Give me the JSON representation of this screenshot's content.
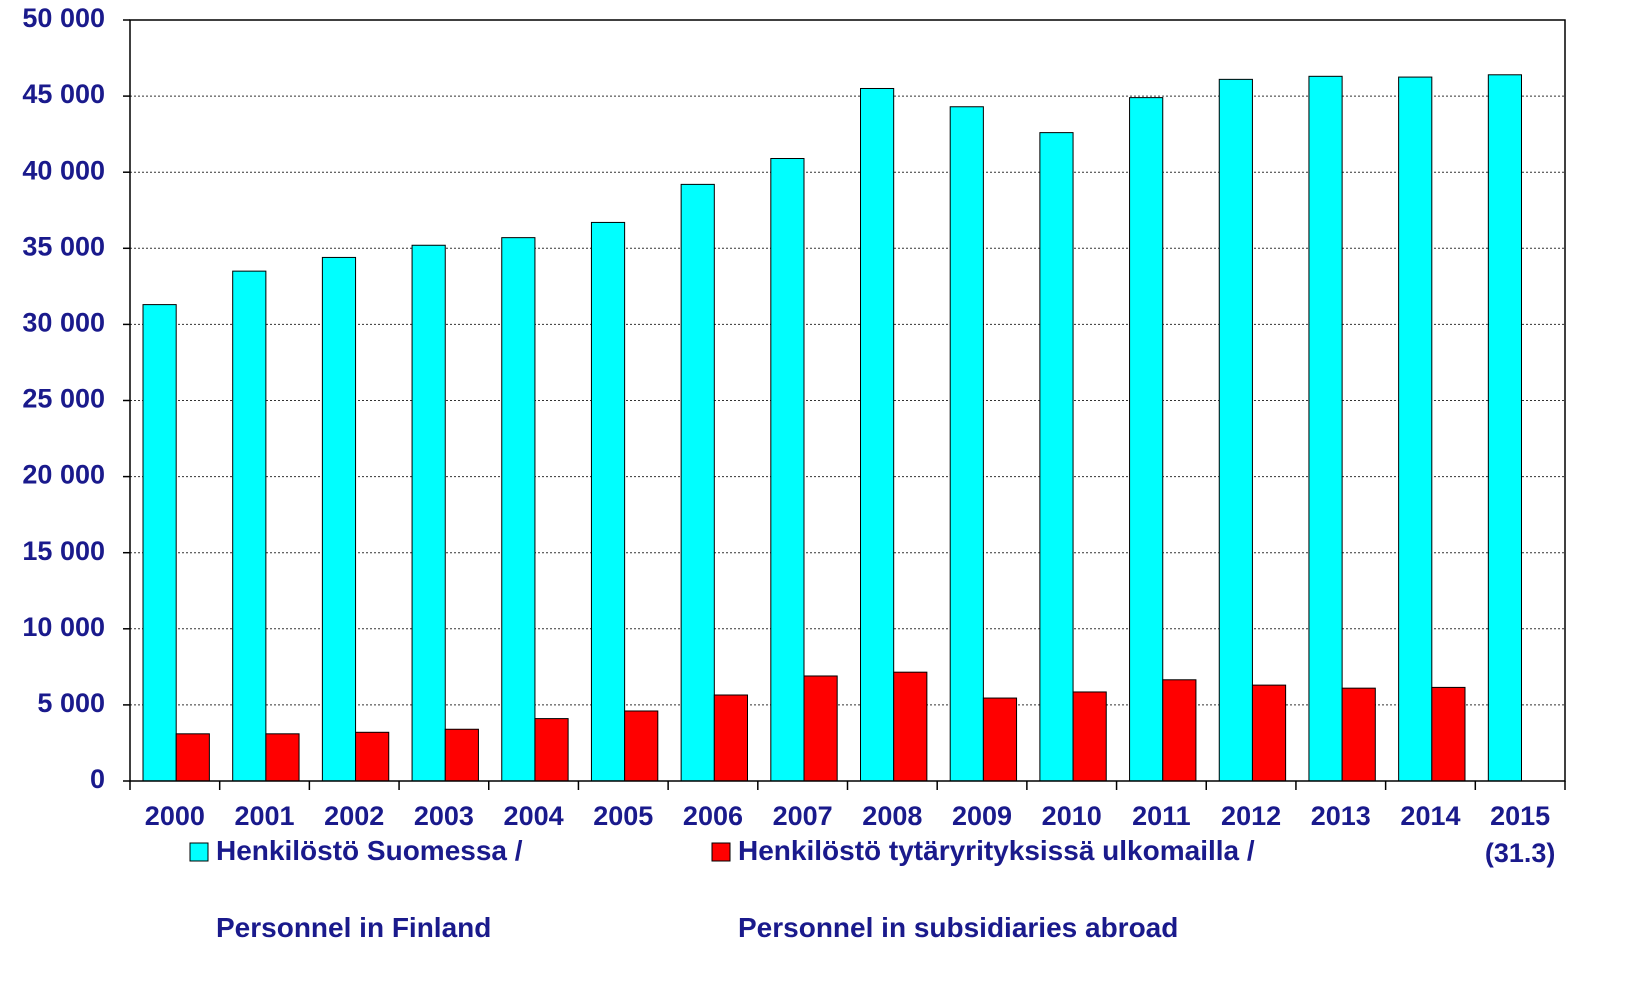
{
  "chart_data": {
    "type": "bar",
    "categories": [
      "2000",
      "2001",
      "2002",
      "2003",
      "2004",
      "2005",
      "2006",
      "2007",
      "2008",
      "2009",
      "2010",
      "2011",
      "2012",
      "2013",
      "2014",
      "2015\n(31.3)"
    ],
    "series": [
      {
        "name": "Henkilöstö Suomessa /\nPersonnel in Finland",
        "color": "#00ffff",
        "values": [
          31300,
          33500,
          34400,
          35200,
          35700,
          36700,
          39200,
          40900,
          45500,
          44300,
          42600,
          44900,
          46100,
          46300,
          46250,
          46400
        ]
      },
      {
        "name": "Henkilöstö tytäryrityksissä ulkomailla /\nPersonnel in subsidiaries abroad",
        "color": "#ff0000",
        "values": [
          3100,
          3100,
          3200,
          3400,
          4100,
          4600,
          5650,
          6900,
          7150,
          5450,
          5850,
          6650,
          6300,
          6100,
          6150,
          null
        ]
      }
    ],
    "ylim": [
      0,
      50000
    ],
    "yticks": [
      0,
      {
        "value": 5000,
        "label": "5 000"
      },
      {
        "value": 10000,
        "label": "10 000"
      },
      {
        "value": 15000,
        "label": "15 000"
      },
      {
        "value": 20000,
        "label": "20 000"
      },
      {
        "value": 25000,
        "label": "25 000"
      },
      {
        "value": 30000,
        "label": "30 000"
      },
      {
        "value": 35000,
        "label": "35 000"
      },
      {
        "value": 40000,
        "label": "40 000"
      },
      {
        "value": 45000,
        "label": "45 000"
      },
      {
        "value": 50000,
        "label": "50 000"
      }
    ],
    "grid": true,
    "legend": "bottom"
  }
}
